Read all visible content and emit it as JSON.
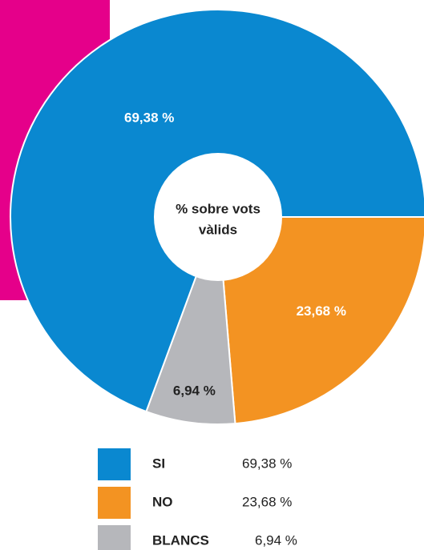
{
  "chart_data": {
    "type": "donut",
    "center_label": [
      "% sobre vots",
      "vàlids"
    ],
    "categories": [
      "SI",
      "NO",
      "BLANCS"
    ],
    "values": [
      69.38,
      23.68,
      6.94
    ],
    "value_labels": [
      "69,38 %",
      "23,68 %",
      "6,94 %"
    ],
    "colors": [
      "#0a88d0",
      "#f39322",
      "#b6b7bb"
    ],
    "label_colors": [
      "#ffffff",
      "#ffffff",
      "#222222"
    ],
    "legend": "bottom"
  }
}
